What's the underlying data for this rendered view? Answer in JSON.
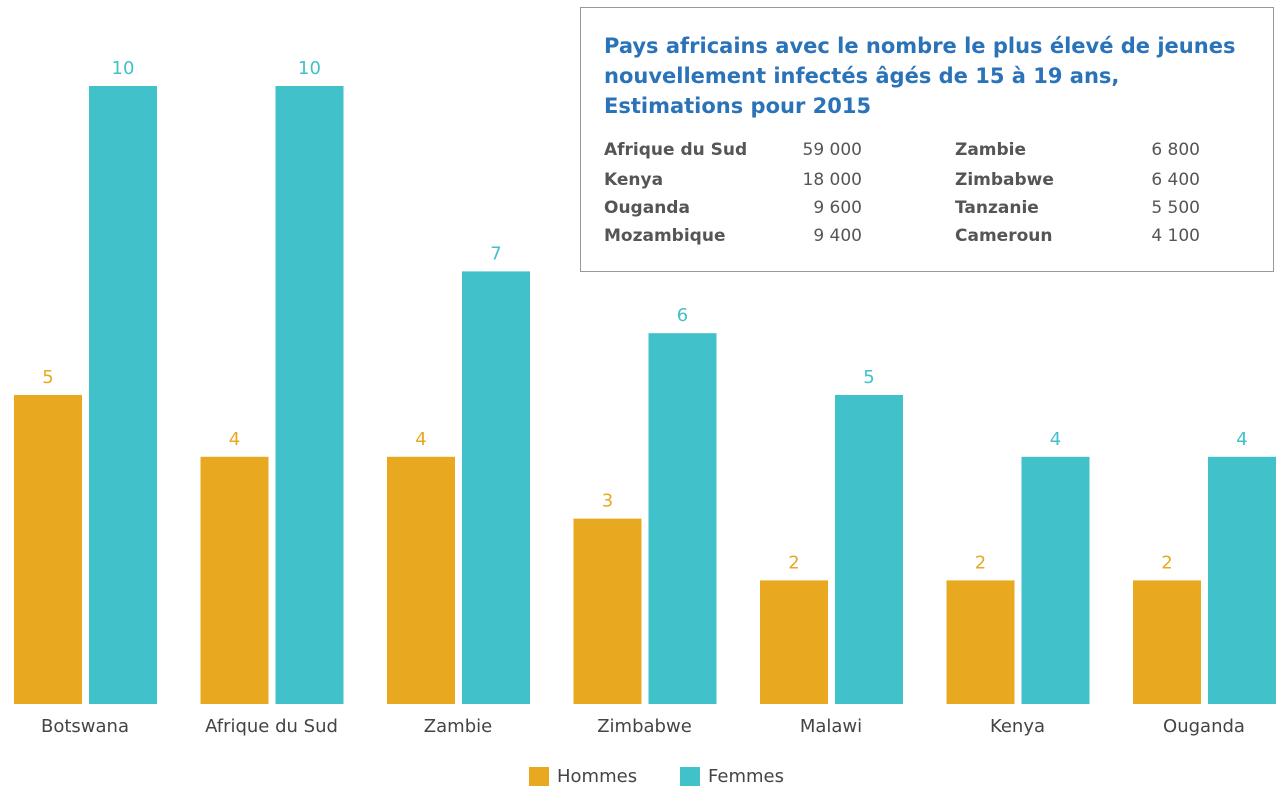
{
  "chart_data": {
    "type": "bar",
    "categories": [
      "Botswana",
      "Afrique du Sud",
      "Zambie",
      "Zimbabwe",
      "Malawi",
      "Kenya",
      "Ouganda"
    ],
    "series": [
      {
        "name": "Hommes",
        "color": "#e8a820",
        "values": [
          5,
          4,
          4,
          3,
          2,
          2,
          2
        ]
      },
      {
        "name": "Femmes",
        "color": "#41c1c9",
        "values": [
          10,
          10,
          7,
          6,
          5,
          4,
          4
        ]
      }
    ],
    "ylim": [
      0,
      10
    ],
    "legend": "bottom",
    "inset": {
      "title": [
        "Pays africains avec le nombre le plus élevé de jeunes",
        "nouvellement infectés âgés de 15 à 19 ans,",
        "Estimations pour 2015"
      ],
      "rows": [
        [
          "Afrique du Sud",
          "59 000",
          "Zambie",
          "6 800"
        ],
        [
          "Kenya",
          "18 000",
          "Zimbabwe",
          "6 400"
        ],
        [
          "Ouganda",
          "9 600",
          "Tanzanie",
          "5 500"
        ],
        [
          "Mozambique",
          "9 400",
          "Cameroun",
          "4 100"
        ]
      ]
    }
  }
}
